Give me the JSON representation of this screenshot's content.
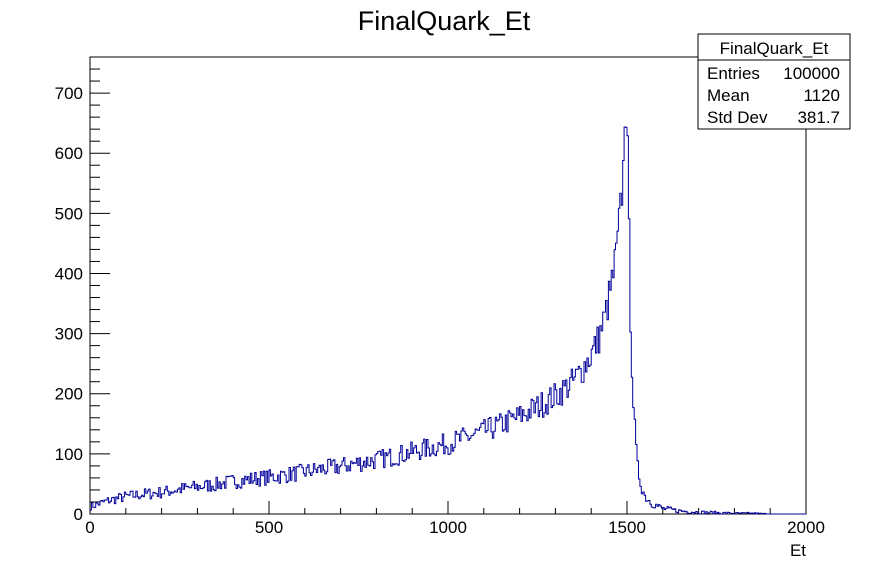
{
  "chart_data": {
    "type": "bar",
    "style": "step-histogram",
    "title": "FinalQuark_Et",
    "xlabel": "Et",
    "ylabel": "",
    "xlim": [
      0,
      2000
    ],
    "ylim": [
      0,
      760
    ],
    "x_ticks": [
      0,
      500,
      1000,
      1500,
      2000
    ],
    "y_ticks": [
      0,
      100,
      200,
      300,
      400,
      500,
      600,
      700
    ],
    "line_color": "#000099",
    "background": "#ffffff",
    "legend_placement": "top-right",
    "bin_width": 4,
    "series": [
      {
        "values": [
          [
            0,
            12
          ],
          [
            50,
            22
          ],
          [
            100,
            29
          ],
          [
            150,
            33
          ],
          [
            200,
            36
          ],
          [
            250,
            41
          ],
          [
            300,
            45
          ],
          [
            350,
            49
          ],
          [
            400,
            54
          ],
          [
            450,
            58
          ],
          [
            500,
            61
          ],
          [
            550,
            65
          ],
          [
            600,
            70
          ],
          [
            650,
            75
          ],
          [
            700,
            79
          ],
          [
            750,
            85
          ],
          [
            800,
            90
          ],
          [
            850,
            96
          ],
          [
            900,
            103
          ],
          [
            950,
            110
          ],
          [
            1000,
            117
          ],
          [
            1050,
            127
          ],
          [
            1100,
            137
          ],
          [
            1150,
            149
          ],
          [
            1200,
            162
          ],
          [
            1250,
            178
          ],
          [
            1300,
            196
          ],
          [
            1350,
            220
          ],
          [
            1380,
            245
          ],
          [
            1400,
            265
          ],
          [
            1420,
            290
          ],
          [
            1440,
            330
          ],
          [
            1460,
            390
          ],
          [
            1470,
            430
          ],
          [
            1480,
            490
          ],
          [
            1490,
            570
          ],
          [
            1495,
            700
          ],
          [
            1500,
            660
          ],
          [
            1505,
            490
          ],
          [
            1510,
            330
          ],
          [
            1515,
            230
          ],
          [
            1520,
            160
          ],
          [
            1525,
            110
          ],
          [
            1530,
            75
          ],
          [
            1540,
            48
          ],
          [
            1550,
            30
          ],
          [
            1570,
            18
          ],
          [
            1600,
            9
          ],
          [
            1650,
            5
          ],
          [
            1700,
            3
          ],
          [
            1750,
            2
          ],
          [
            1800,
            1
          ],
          [
            1850,
            1
          ],
          [
            1900,
            0
          ],
          [
            2000,
            0
          ]
        ]
      }
    ]
  },
  "stats_box": {
    "title": "FinalQuark_Et",
    "rows": [
      {
        "label": "Entries",
        "value": "100000"
      },
      {
        "label": "Mean",
        "value": "1120"
      },
      {
        "label": "Std Dev",
        "value": "381.7"
      }
    ]
  }
}
